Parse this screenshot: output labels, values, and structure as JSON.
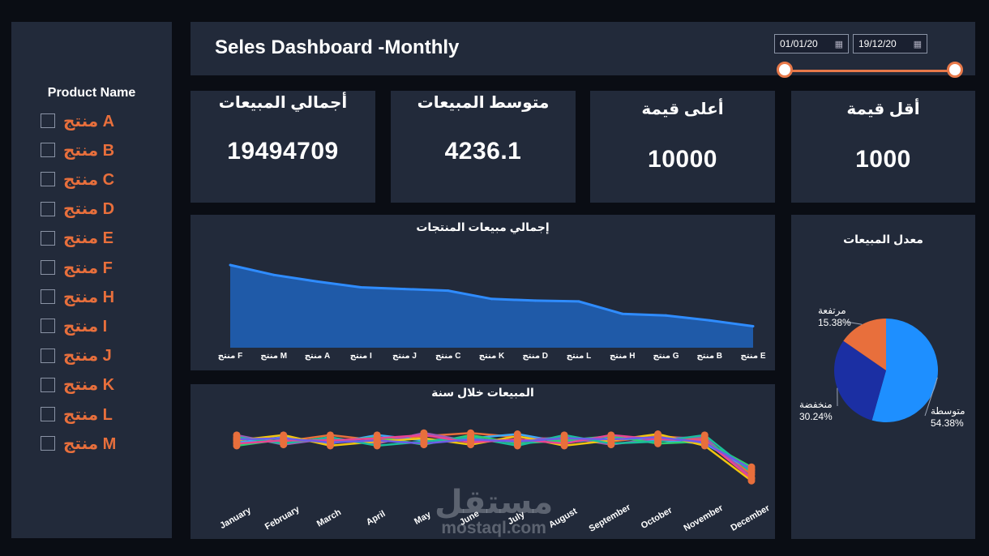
{
  "sidebar": {
    "title": "Product Name",
    "items": [
      "منتج A",
      "منتج B",
      "منتج C",
      "منتج D",
      "منتج E",
      "منتج F",
      "منتج H",
      "منتج I",
      "منتج J",
      "منتج K",
      "منتج L",
      "منتج M"
    ]
  },
  "header": {
    "title": "Seles Dashboard -Monthly",
    "date_from": "01/01/20",
    "date_to": "19/12/20"
  },
  "kpis": [
    {
      "title": "أجمالي المبيعات",
      "value": "19494709"
    },
    {
      "title": "متوسط المبيعات",
      "value": "4236.1"
    },
    {
      "title": "أعلى قيمة",
      "value": "10000"
    },
    {
      "title": "أقل قيمة",
      "value": "1000"
    }
  ],
  "colors": {
    "accent": "#e86f3c",
    "panel": "#222a3a",
    "background": "#0a0d14",
    "area": "#1f5aa8",
    "area_line": "#2f8cff"
  },
  "chart_data": [
    {
      "type": "area",
      "title": "إجمالي مبيعات المنتجات",
      "categories": [
        "منتج F",
        "منتج M",
        "منتج A",
        "منتج I",
        "منتج J",
        "منتج C",
        "منتج K",
        "منتج D",
        "منتج L",
        "منتج H",
        "منتج G",
        "منتج B",
        "منتج E"
      ],
      "values": [
        100,
        88,
        80,
        73,
        71,
        69,
        59,
        57,
        56,
        41,
        39,
        33,
        26
      ],
      "ylim": [
        0,
        100
      ]
    },
    {
      "type": "line",
      "title": "المبيعات خلال سنة",
      "categories": [
        "January",
        "February",
        "March",
        "April",
        "May",
        "June",
        "July",
        "August",
        "September",
        "October",
        "November",
        "December"
      ],
      "series": [
        {
          "values": [
            52,
            49,
            55,
            50,
            54,
            57,
            53,
            51,
            49,
            54,
            51,
            18
          ],
          "color": "#e86f3c"
        },
        {
          "values": [
            48,
            53,
            47,
            55,
            50,
            52,
            56,
            48,
            52,
            50,
            47,
            22
          ],
          "color": "#3fa9f5"
        },
        {
          "values": [
            55,
            46,
            52,
            47,
            57,
            49,
            50,
            53,
            46,
            52,
            53,
            15
          ],
          "color": "#9b59b6"
        },
        {
          "values": [
            45,
            51,
            49,
            53,
            46,
            55,
            47,
            50,
            54,
            47,
            49,
            25
          ],
          "color": "#2ecc71"
        },
        {
          "values": [
            50,
            55,
            45,
            49,
            52,
            46,
            54,
            45,
            50,
            56,
            45,
            12
          ],
          "color": "#f1c40f"
        },
        {
          "values": [
            53,
            47,
            53,
            45,
            49,
            53,
            45,
            55,
            47,
            49,
            55,
            20
          ],
          "color": "#1abc9c"
        },
        {
          "values": [
            47,
            50,
            50,
            52,
            55,
            48,
            51,
            47,
            55,
            51,
            50,
            14
          ],
          "color": "#e84393"
        },
        {
          "values": [
            51,
            52,
            48,
            50,
            47,
            51,
            49,
            52,
            51,
            53,
            48,
            23
          ],
          "color": "#6c5ce7"
        }
      ],
      "ylim": [
        0,
        80
      ]
    },
    {
      "type": "pie",
      "title": "معدل المبيعات",
      "slices": [
        {
          "label": "متوسطة",
          "value": 54.38,
          "display": "54.38%",
          "color": "#1e8fff"
        },
        {
          "label": "منخفضة",
          "value": 30.24,
          "display": "30.24%",
          "color": "#1b2fa3"
        },
        {
          "label": "مرتفعة",
          "value": 15.38,
          "display": "15.38%",
          "color": "#e86f3c"
        }
      ]
    }
  ],
  "watermark": {
    "ar": "مستقل",
    "en": "mostaql.com"
  }
}
